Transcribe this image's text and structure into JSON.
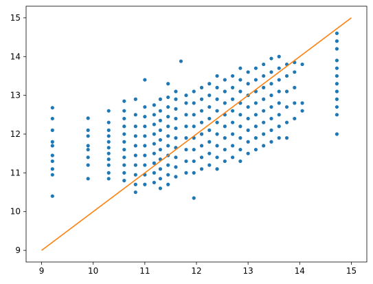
{
  "chart_data": {
    "type": "scatter",
    "title": "",
    "xlabel": "",
    "ylabel": "",
    "xlim": [
      8.7,
      15.3
    ],
    "ylim": [
      8.7,
      15.3
    ],
    "grid": false,
    "x_ticks": [
      9,
      10,
      11,
      12,
      13,
      14,
      15
    ],
    "y_ticks": [
      9,
      10,
      11,
      12,
      13,
      14,
      15
    ],
    "x_tick_labels": [
      "9",
      "10",
      "11",
      "12",
      "13",
      "14",
      "15"
    ],
    "y_tick_labels": [
      "9",
      "10",
      "11",
      "12",
      "13",
      "14",
      "15"
    ],
    "colors": {
      "points": "#1f77b4",
      "line": "#ff7f0e"
    },
    "series": [
      {
        "kind": "points",
        "points": [
          [
            9.21,
            10.4
          ],
          [
            9.21,
            10.95
          ],
          [
            9.21,
            11.1
          ],
          [
            9.21,
            11.3
          ],
          [
            9.21,
            11.45
          ],
          [
            9.21,
            11.7
          ],
          [
            9.21,
            11.8
          ],
          [
            9.21,
            12.1
          ],
          [
            9.21,
            12.4
          ],
          [
            9.21,
            12.68
          ],
          [
            9.9,
            10.85
          ],
          [
            9.9,
            11.2
          ],
          [
            9.9,
            11.4
          ],
          [
            9.9,
            11.6
          ],
          [
            9.9,
            11.7
          ],
          [
            9.9,
            11.95
          ],
          [
            9.9,
            12.1
          ],
          [
            9.9,
            12.41
          ],
          [
            10.3,
            10.85
          ],
          [
            10.3,
            11.0
          ],
          [
            10.3,
            11.2
          ],
          [
            10.3,
            11.35
          ],
          [
            10.3,
            11.5
          ],
          [
            10.3,
            11.65
          ],
          [
            10.3,
            11.8
          ],
          [
            10.3,
            11.95
          ],
          [
            10.3,
            12.1
          ],
          [
            10.3,
            12.3
          ],
          [
            10.3,
            12.6
          ],
          [
            10.6,
            10.8
          ],
          [
            10.6,
            11.0
          ],
          [
            10.6,
            11.2
          ],
          [
            10.6,
            11.4
          ],
          [
            10.6,
            11.6
          ],
          [
            10.6,
            11.8
          ],
          [
            10.6,
            12.0
          ],
          [
            10.6,
            12.2
          ],
          [
            10.6,
            12.4
          ],
          [
            10.6,
            12.6
          ],
          [
            10.6,
            12.85
          ],
          [
            10.82,
            10.5
          ],
          [
            10.82,
            10.7
          ],
          [
            10.82,
            10.95
          ],
          [
            10.82,
            11.2
          ],
          [
            10.82,
            11.45
          ],
          [
            10.82,
            11.7
          ],
          [
            10.82,
            11.95
          ],
          [
            10.82,
            12.2
          ],
          [
            10.82,
            12.5
          ],
          [
            10.82,
            12.9
          ],
          [
            11.0,
            10.7
          ],
          [
            11.0,
            10.95
          ],
          [
            11.0,
            11.2
          ],
          [
            11.0,
            11.45
          ],
          [
            11.0,
            11.7
          ],
          [
            11.0,
            11.95
          ],
          [
            11.0,
            12.2
          ],
          [
            11.0,
            12.45
          ],
          [
            11.0,
            12.7
          ],
          [
            11.0,
            13.4
          ],
          [
            11.18,
            10.75
          ],
          [
            11.18,
            11.0
          ],
          [
            11.18,
            11.25
          ],
          [
            11.18,
            11.5
          ],
          [
            11.18,
            11.75
          ],
          [
            11.18,
            12.0
          ],
          [
            11.18,
            12.25
          ],
          [
            11.18,
            12.5
          ],
          [
            11.18,
            12.75
          ],
          [
            11.3,
            10.6
          ],
          [
            11.3,
            10.85
          ],
          [
            11.3,
            11.1
          ],
          [
            11.3,
            11.35
          ],
          [
            11.3,
            11.6
          ],
          [
            11.3,
            11.85
          ],
          [
            11.3,
            12.1
          ],
          [
            11.3,
            12.35
          ],
          [
            11.3,
            12.6
          ],
          [
            11.3,
            12.9
          ],
          [
            11.45,
            10.7
          ],
          [
            11.45,
            10.95
          ],
          [
            11.45,
            11.2
          ],
          [
            11.45,
            11.45
          ],
          [
            11.45,
            11.7
          ],
          [
            11.45,
            11.95
          ],
          [
            11.45,
            12.2
          ],
          [
            11.45,
            12.45
          ],
          [
            11.45,
            12.7
          ],
          [
            11.45,
            12.95
          ],
          [
            11.45,
            13.3
          ],
          [
            11.6,
            10.9
          ],
          [
            11.6,
            11.15
          ],
          [
            11.6,
            11.4
          ],
          [
            11.6,
            11.65
          ],
          [
            11.6,
            11.9
          ],
          [
            11.6,
            12.15
          ],
          [
            11.6,
            12.4
          ],
          [
            11.6,
            12.65
          ],
          [
            11.6,
            12.9
          ],
          [
            11.6,
            13.1
          ],
          [
            11.7,
            13.88
          ],
          [
            11.95,
            10.35
          ],
          [
            11.8,
            11.0
          ],
          [
            11.8,
            11.3
          ],
          [
            11.8,
            11.6
          ],
          [
            11.8,
            11.9
          ],
          [
            11.8,
            12.2
          ],
          [
            11.8,
            12.5
          ],
          [
            11.8,
            12.8
          ],
          [
            11.8,
            13.0
          ],
          [
            11.95,
            11.0
          ],
          [
            11.95,
            11.3
          ],
          [
            11.95,
            11.6
          ],
          [
            11.95,
            11.9
          ],
          [
            11.95,
            12.2
          ],
          [
            11.95,
            12.5
          ],
          [
            11.95,
            12.8
          ],
          [
            11.95,
            13.1
          ],
          [
            12.1,
            11.1
          ],
          [
            12.1,
            11.4
          ],
          [
            12.1,
            11.7
          ],
          [
            12.1,
            12.0
          ],
          [
            12.1,
            12.3
          ],
          [
            12.1,
            12.6
          ],
          [
            12.1,
            12.9
          ],
          [
            12.1,
            13.2
          ],
          [
            12.25,
            11.2
          ],
          [
            12.25,
            11.5
          ],
          [
            12.25,
            11.8
          ],
          [
            12.25,
            12.1
          ],
          [
            12.25,
            12.4
          ],
          [
            12.25,
            12.7
          ],
          [
            12.25,
            13.0
          ],
          [
            12.25,
            13.3
          ],
          [
            12.4,
            11.1
          ],
          [
            12.4,
            11.4
          ],
          [
            12.4,
            11.7
          ],
          [
            12.4,
            12.0
          ],
          [
            12.4,
            12.3
          ],
          [
            12.4,
            12.6
          ],
          [
            12.4,
            12.9
          ],
          [
            12.4,
            13.2
          ],
          [
            12.4,
            13.5
          ],
          [
            12.55,
            11.3
          ],
          [
            12.55,
            11.6
          ],
          [
            12.55,
            11.9
          ],
          [
            12.55,
            12.2
          ],
          [
            12.55,
            12.5
          ],
          [
            12.55,
            12.8
          ],
          [
            12.55,
            13.1
          ],
          [
            12.55,
            13.4
          ],
          [
            12.7,
            11.4
          ],
          [
            12.7,
            11.7
          ],
          [
            12.7,
            12.0
          ],
          [
            12.7,
            12.3
          ],
          [
            12.7,
            12.6
          ],
          [
            12.7,
            12.9
          ],
          [
            12.7,
            13.2
          ],
          [
            12.7,
            13.5
          ],
          [
            12.85,
            11.3
          ],
          [
            12.85,
            11.6
          ],
          [
            12.85,
            11.9
          ],
          [
            12.85,
            12.2
          ],
          [
            12.85,
            12.5
          ],
          [
            12.85,
            12.8
          ],
          [
            12.85,
            13.1
          ],
          [
            12.85,
            13.4
          ],
          [
            12.85,
            13.7
          ],
          [
            13.0,
            11.5
          ],
          [
            13.0,
            11.8
          ],
          [
            13.0,
            12.1
          ],
          [
            13.0,
            12.4
          ],
          [
            13.0,
            12.7
          ],
          [
            13.0,
            13.0
          ],
          [
            13.0,
            13.3
          ],
          [
            13.0,
            13.6
          ],
          [
            13.15,
            11.6
          ],
          [
            13.15,
            11.9
          ],
          [
            13.15,
            12.2
          ],
          [
            13.15,
            12.5
          ],
          [
            13.15,
            12.8
          ],
          [
            13.15,
            13.1
          ],
          [
            13.15,
            13.4
          ],
          [
            13.15,
            13.7
          ],
          [
            13.3,
            11.7
          ],
          [
            13.3,
            12.0
          ],
          [
            13.3,
            12.3
          ],
          [
            13.3,
            12.6
          ],
          [
            13.3,
            12.9
          ],
          [
            13.3,
            13.2
          ],
          [
            13.3,
            13.5
          ],
          [
            13.3,
            13.8
          ],
          [
            13.45,
            11.8
          ],
          [
            13.45,
            12.1
          ],
          [
            13.45,
            12.4
          ],
          [
            13.45,
            12.7
          ],
          [
            13.45,
            13.0
          ],
          [
            13.45,
            13.3
          ],
          [
            13.45,
            13.6
          ],
          [
            13.45,
            13.95
          ],
          [
            13.6,
            11.9
          ],
          [
            13.6,
            12.2
          ],
          [
            13.6,
            12.5
          ],
          [
            13.6,
            12.8
          ],
          [
            13.6,
            13.1
          ],
          [
            13.6,
            13.4
          ],
          [
            13.6,
            13.7
          ],
          [
            13.6,
            14.0
          ],
          [
            13.75,
            11.9
          ],
          [
            13.75,
            12.3
          ],
          [
            13.75,
            12.7
          ],
          [
            13.75,
            13.1
          ],
          [
            13.75,
            13.5
          ],
          [
            13.75,
            13.8
          ],
          [
            13.9,
            12.4
          ],
          [
            13.9,
            12.8
          ],
          [
            13.9,
            13.2
          ],
          [
            13.9,
            13.6
          ],
          [
            13.9,
            13.85
          ],
          [
            14.05,
            12.6
          ],
          [
            14.05,
            12.8
          ],
          [
            14.05,
            13.8
          ],
          [
            14.72,
            12.0
          ],
          [
            14.72,
            12.5
          ],
          [
            14.72,
            12.7
          ],
          [
            14.72,
            12.9
          ],
          [
            14.72,
            13.1
          ],
          [
            14.72,
            13.3
          ],
          [
            14.72,
            13.5
          ],
          [
            14.72,
            13.7
          ],
          [
            14.72,
            13.9
          ],
          [
            14.72,
            14.2
          ],
          [
            14.72,
            14.4
          ],
          [
            14.72,
            14.6
          ]
        ]
      },
      {
        "kind": "line",
        "x": [
          9,
          15
        ],
        "y": [
          9,
          15
        ]
      }
    ]
  }
}
